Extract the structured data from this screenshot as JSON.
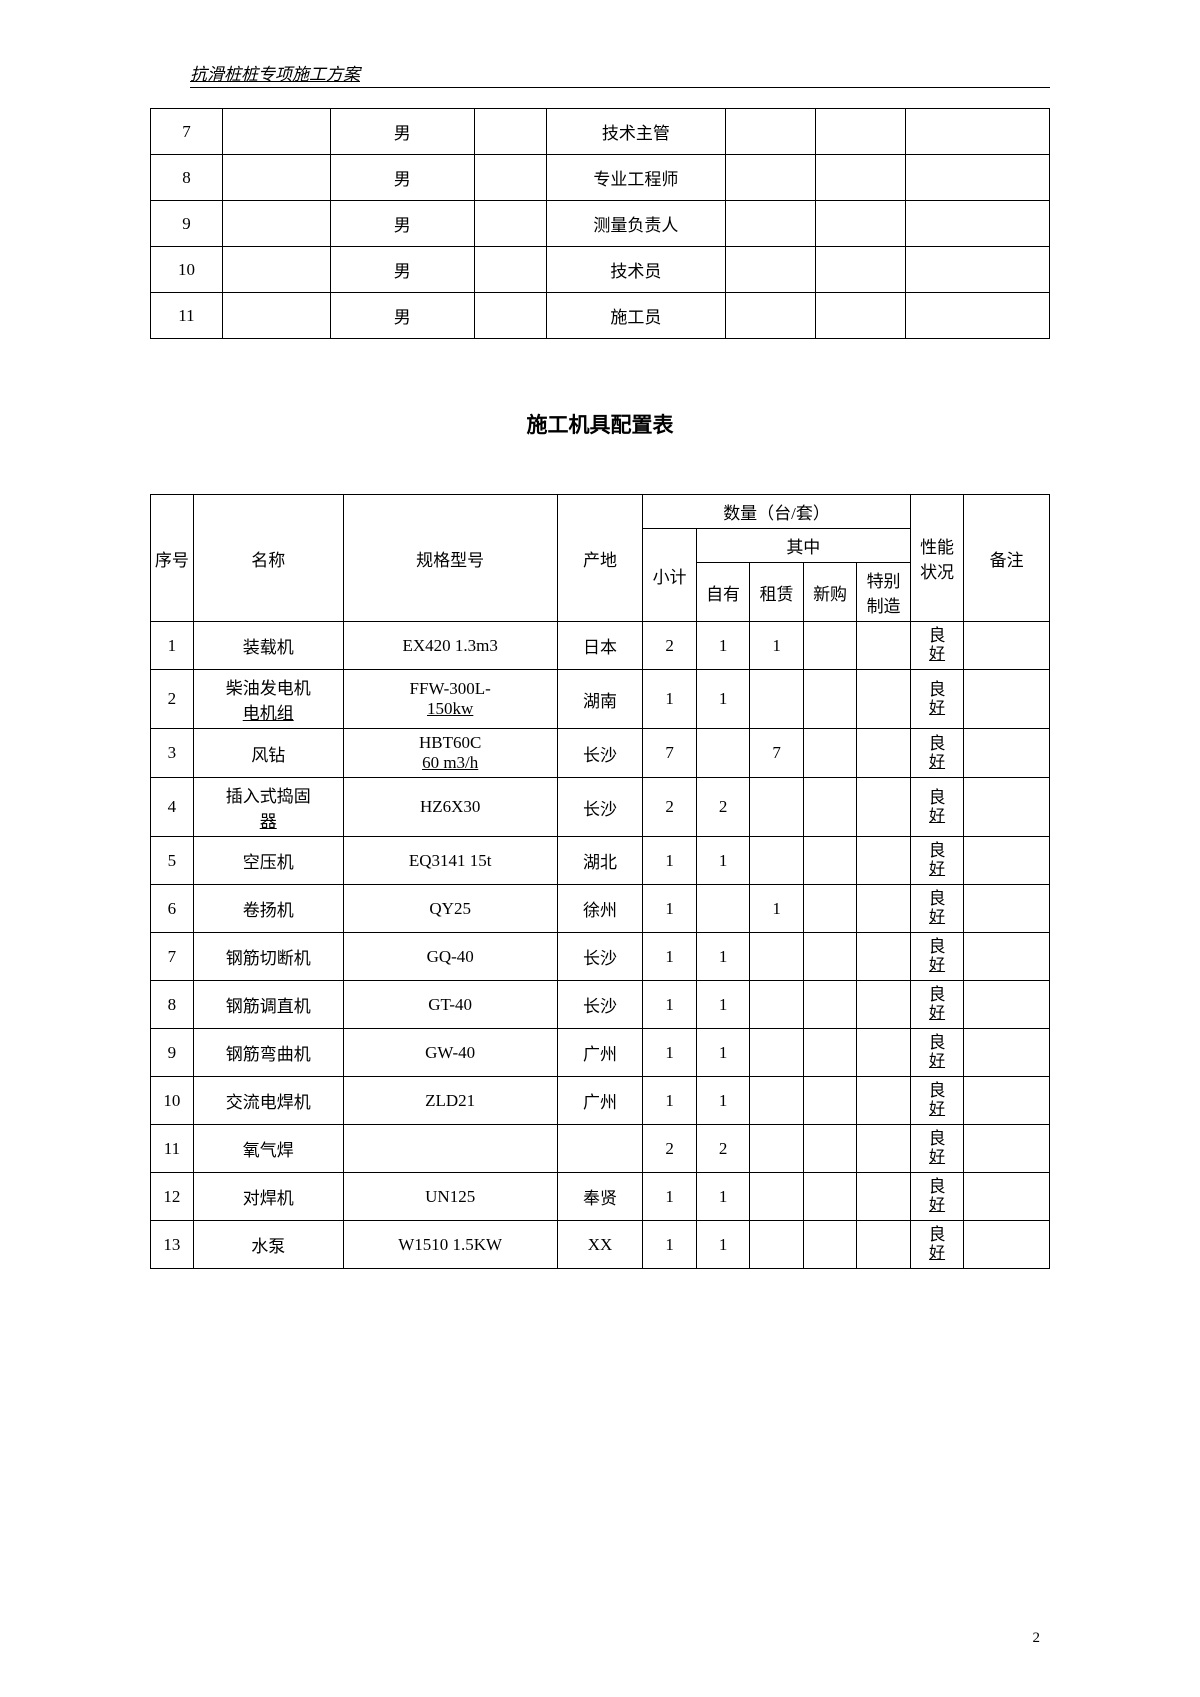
{
  "header": {
    "title": "抗滑桩桩专项施工方案"
  },
  "table1": {
    "rows": [
      {
        "num": "7",
        "gender": "男",
        "role": "技术主管"
      },
      {
        "num": "8",
        "gender": "男",
        "role": "专业工程师"
      },
      {
        "num": "9",
        "gender": "男",
        "role": "测量负责人"
      },
      {
        "num": "10",
        "gender": "男",
        "role": "技术员"
      },
      {
        "num": "11",
        "gender": "男",
        "role": "施工员"
      }
    ]
  },
  "section_title": "施工机具配置表",
  "table2": {
    "headers": {
      "seq": "序号",
      "name": "名称",
      "spec": "规格型号",
      "origin": "产地",
      "qty_header": "数量（台/套）",
      "total": "小计",
      "sub_header": "其中",
      "own": "自有",
      "rent": "租赁",
      "buy": "新购",
      "special": "特别制造",
      "status": "性能状况",
      "remark": "备注"
    },
    "rows": [
      {
        "seq": "1",
        "name": "装载机",
        "spec": "EX420 1.3m3",
        "origin": "日本",
        "total": "2",
        "own": "1",
        "rent": "1",
        "buy": "",
        "special": "",
        "status": "良好"
      },
      {
        "seq": "2",
        "name": "柴油发电机电机组",
        "spec": "FFW-300L-150kw",
        "origin": "湖南",
        "total": "1",
        "own": "1",
        "rent": "",
        "buy": "",
        "special": "",
        "status": "良好"
      },
      {
        "seq": "3",
        "name": "风钻",
        "spec": "HBT60C 60 m3/h",
        "origin": "长沙",
        "total": "7",
        "own": "",
        "rent": "7",
        "buy": "",
        "special": "",
        "status": "良好"
      },
      {
        "seq": "4",
        "name": "插入式捣固器",
        "spec": "HZ6X30",
        "origin": "长沙",
        "total": "2",
        "own": "2",
        "rent": "",
        "buy": "",
        "special": "",
        "status": "良好"
      },
      {
        "seq": "5",
        "name": "空压机",
        "spec": "EQ3141 15t",
        "origin": "湖北",
        "total": "1",
        "own": "1",
        "rent": "",
        "buy": "",
        "special": "",
        "status": "良好"
      },
      {
        "seq": "6",
        "name": "卷扬机",
        "spec": "QY25",
        "origin": "徐州",
        "total": "1",
        "own": "",
        "rent": "1",
        "buy": "",
        "special": "",
        "status": "良好"
      },
      {
        "seq": "7",
        "name": "钢筋切断机",
        "spec": "GQ-40",
        "origin": "长沙",
        "total": "1",
        "own": "1",
        "rent": "",
        "buy": "",
        "special": "",
        "status": "良好"
      },
      {
        "seq": "8",
        "name": "钢筋调直机",
        "spec": "GT-40",
        "origin": "长沙",
        "total": "1",
        "own": "1",
        "rent": "",
        "buy": "",
        "special": "",
        "status": "良好"
      },
      {
        "seq": "9",
        "name": "钢筋弯曲机",
        "spec": "GW-40",
        "origin": "广州",
        "total": "1",
        "own": "1",
        "rent": "",
        "buy": "",
        "special": "",
        "status": "良好"
      },
      {
        "seq": "10",
        "name": "交流电焊机",
        "spec": "ZLD21",
        "origin": "广州",
        "total": "1",
        "own": "1",
        "rent": "",
        "buy": "",
        "special": "",
        "status": "良好"
      },
      {
        "seq": "11",
        "name": "氧气焊",
        "spec": "",
        "origin": "",
        "total": "2",
        "own": "2",
        "rent": "",
        "buy": "",
        "special": "",
        "status": "良好"
      },
      {
        "seq": "12",
        "name": "对焊机",
        "spec": "UN125",
        "origin": "奉贤",
        "total": "1",
        "own": "1",
        "rent": "",
        "buy": "",
        "special": "",
        "status": "良好"
      },
      {
        "seq": "13",
        "name": "水泵",
        "spec": "W1510 1.5KW",
        "origin": "XX",
        "total": "1",
        "own": "1",
        "rent": "",
        "buy": "",
        "special": "",
        "status": "良好"
      }
    ]
  },
  "page_number": "2"
}
